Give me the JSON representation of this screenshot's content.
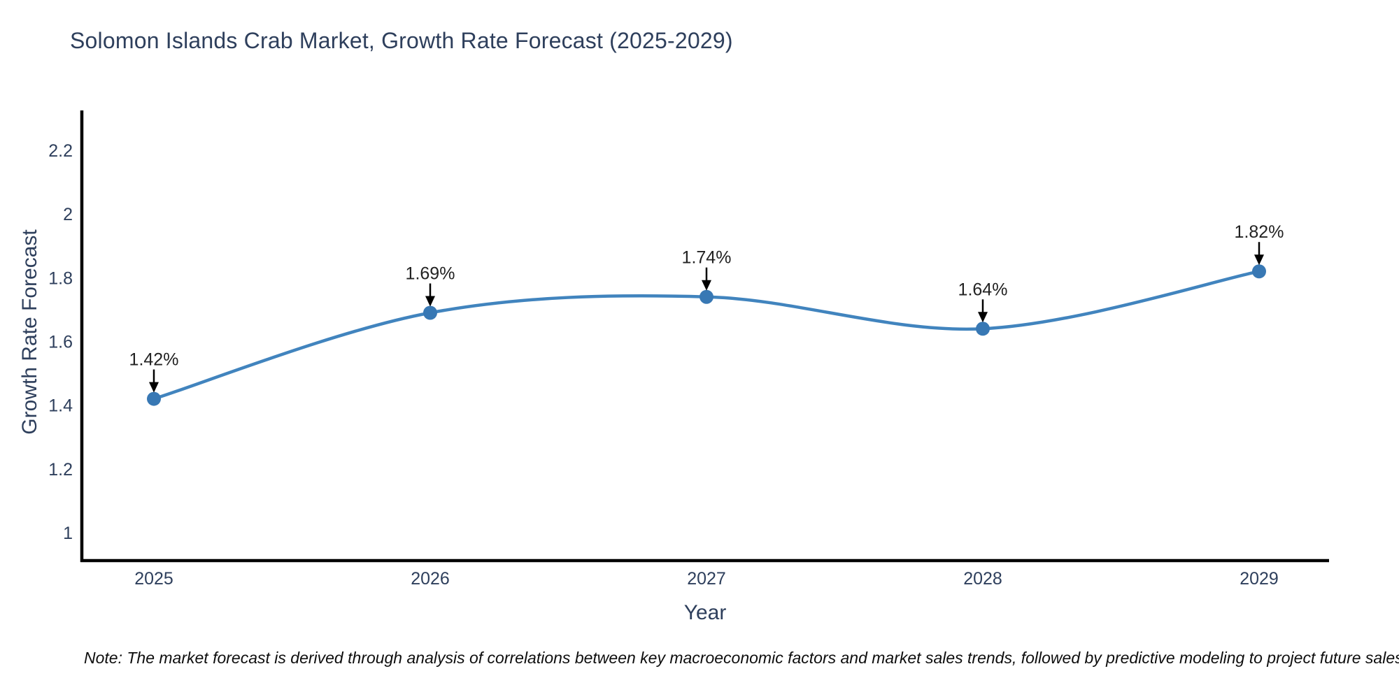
{
  "title": "Solomon Islands Crab Market, Growth Rate Forecast (2025-2029)",
  "note": "Note: The market forecast is derived through analysis of correlations between key macroeconomic factors and market sales trends, followed by predictive modeling to project future sales",
  "chart_data": {
    "type": "line",
    "title": "Solomon Islands Crab Market, Growth Rate Forecast (2025-2029)",
    "xlabel": "Year",
    "ylabel": "Growth Rate Forecast",
    "x": [
      2025,
      2026,
      2027,
      2028,
      2029
    ],
    "y": [
      1.42,
      1.69,
      1.74,
      1.64,
      1.82
    ],
    "point_labels": [
      "1.42%",
      "1.69%",
      "1.74%",
      "1.64%",
      "1.82%"
    ],
    "x_tick_labels": [
      "2025",
      "2026",
      "2027",
      "2028",
      "2029"
    ],
    "y_tick_values": [
      2.2,
      2.0,
      1.8,
      1.6,
      1.4,
      1.2,
      1.0
    ],
    "y_tick_labels": [
      "2.2",
      "2",
      "1.8",
      "1.6",
      "1.4",
      "1.2",
      "1"
    ],
    "ylim": [
      0.91,
      2.32
    ],
    "line_shape": "spline",
    "grid": false,
    "legend": false,
    "colors": {
      "line": "#4184be",
      "marker": "#3878b4",
      "arrow": "#000000",
      "axis": "#000000",
      "tick_text": "#2e3f5c",
      "annotation_text": "#222222"
    }
  }
}
